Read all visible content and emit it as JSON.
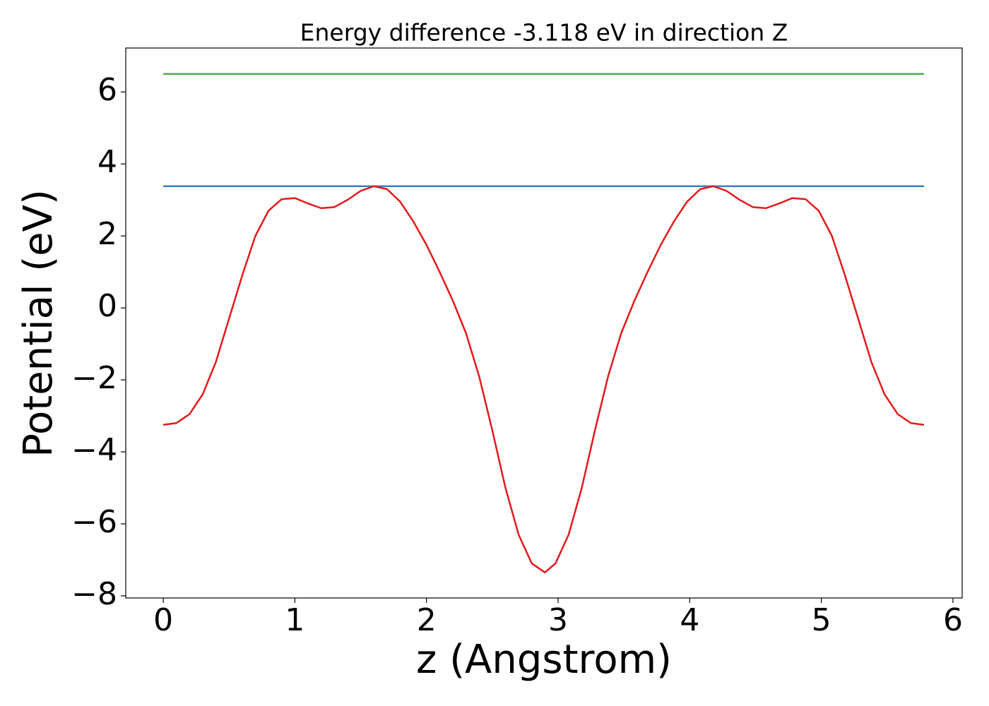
{
  "chart_data": {
    "type": "line",
    "title": "Energy difference -3.118 eV in direction Z",
    "xlabel": "z (Angstrom)",
    "ylabel": "Potential (eV)",
    "xlim": [
      -0.285,
      6.07
    ],
    "ylim": [
      -8.06,
      7.22
    ],
    "xticks": [
      0,
      1,
      2,
      3,
      4,
      5,
      6
    ],
    "yticks": [
      {
        "value": -8,
        "label": "−8"
      },
      {
        "value": -6,
        "label": "−6"
      },
      {
        "value": -4,
        "label": "−4"
      },
      {
        "value": -2,
        "label": "−2"
      },
      0,
      2,
      4,
      6
    ],
    "grid": false,
    "series": [
      {
        "color": "#4daf4a",
        "x": [
          0,
          5.78
        ],
        "values": [
          6.5,
          6.5
        ]
      },
      {
        "color": "#3a80c0",
        "x": [
          0,
          5.78
        ],
        "values": [
          3.38,
          3.38
        ]
      },
      {
        "color": "#e31a1c",
        "x": [
          0,
          0.1,
          0.2,
          0.3,
          0.4,
          0.5,
          0.6,
          0.7,
          0.8,
          0.9,
          1.0,
          1.1,
          1.2,
          1.3,
          1.4,
          1.5,
          1.6,
          1.7,
          1.8,
          1.9,
          2.0,
          2.1,
          2.2,
          2.3,
          2.4,
          2.5,
          2.6,
          2.7,
          2.8,
          2.9,
          2.98,
          3.08,
          3.18,
          3.28,
          3.38,
          3.48,
          3.58,
          3.68,
          3.78,
          3.88,
          3.98,
          4.08,
          4.18,
          4.28,
          4.38,
          4.48,
          4.58,
          4.68,
          4.78,
          4.88,
          4.98,
          5.08,
          5.18,
          5.28,
          5.38,
          5.48,
          5.58,
          5.68,
          5.78
        ],
        "values": [
          -3.25,
          -3.2,
          -2.95,
          -2.4,
          -1.5,
          -0.3,
          0.9,
          2.0,
          2.7,
          3.02,
          3.05,
          2.9,
          2.77,
          2.8,
          3.0,
          3.25,
          3.38,
          3.3,
          2.95,
          2.4,
          1.75,
          1.0,
          0.2,
          -0.7,
          -1.9,
          -3.4,
          -5.0,
          -6.3,
          -7.1,
          -7.35,
          -7.1,
          -6.3,
          -5.0,
          -3.4,
          -1.9,
          -0.7,
          0.2,
          1.0,
          1.75,
          2.4,
          2.95,
          3.3,
          3.38,
          3.25,
          3.0,
          2.8,
          2.77,
          2.9,
          3.05,
          3.02,
          2.7,
          2.0,
          0.9,
          -0.3,
          -1.5,
          -2.4,
          -2.95,
          -3.2,
          -3.25
        ]
      }
    ]
  }
}
